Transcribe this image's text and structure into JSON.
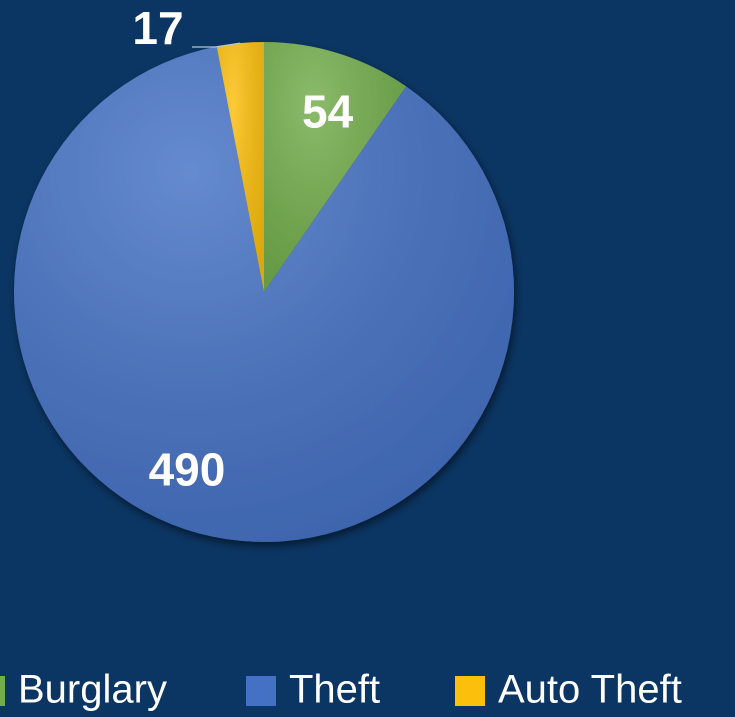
{
  "chart_data": {
    "type": "pie",
    "categories": [
      "Burglary",
      "Theft",
      "Auto Theft"
    ],
    "values": [
      54,
      490,
      17
    ],
    "colors": [
      "#72ad4b",
      "#4471c4",
      "#fcbf0c"
    ]
  }
}
